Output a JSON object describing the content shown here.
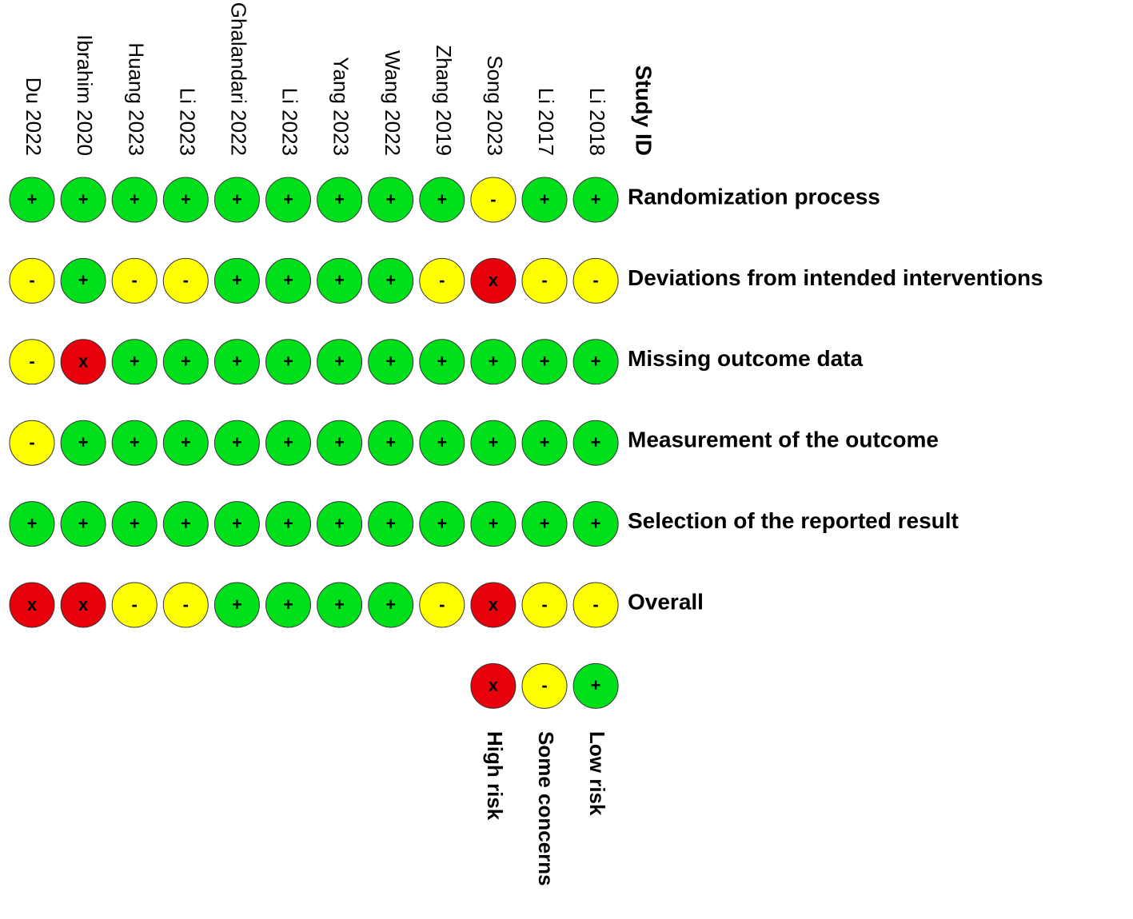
{
  "header": "Study ID",
  "studies": [
    "Du 2022",
    "Ibrahim 2020",
    "Huang 2023",
    "Li 2023",
    "Ghalandari 2022",
    "Li 2023",
    "Yang 2023",
    "Wang 2022",
    "Zhang 2019",
    "Song 2023",
    "Li 2017",
    "Li 2018"
  ],
  "domains": [
    {
      "label": "Randomization process",
      "judgements": [
        "+",
        "+",
        "+",
        "+",
        "+",
        "+",
        "+",
        "+",
        "+",
        "-",
        "+",
        "+"
      ]
    },
    {
      "label": "Deviations from intended interventions",
      "judgements": [
        "-",
        "+",
        "-",
        "-",
        "+",
        "+",
        "+",
        "+",
        "-",
        "x",
        "-",
        "-"
      ]
    },
    {
      "label": "Missing outcome data",
      "judgements": [
        "-",
        "x",
        "+",
        "+",
        "+",
        "+",
        "+",
        "+",
        "+",
        "+",
        "+",
        "+"
      ]
    },
    {
      "label": "Measurement of the outcome",
      "judgements": [
        "-",
        "+",
        "+",
        "+",
        "+",
        "+",
        "+",
        "+",
        "+",
        "+",
        "+",
        "+"
      ]
    },
    {
      "label": "Selection of the reported result",
      "judgements": [
        "+",
        "+",
        "+",
        "+",
        "+",
        "+",
        "+",
        "+",
        "+",
        "+",
        "+",
        "+"
      ]
    },
    {
      "label": "Overall",
      "judgements": [
        "x",
        "x",
        "-",
        "-",
        "+",
        "+",
        "+",
        "+",
        "-",
        "x",
        "-",
        "-"
      ]
    }
  ],
  "legend": [
    {
      "symbol": "x",
      "label": "High risk",
      "color": "#e8000b"
    },
    {
      "symbol": "-",
      "label": "Some concerns",
      "color": "#ffff00"
    },
    {
      "symbol": "+",
      "label": "Low risk",
      "color": "#00e01a"
    }
  ]
}
